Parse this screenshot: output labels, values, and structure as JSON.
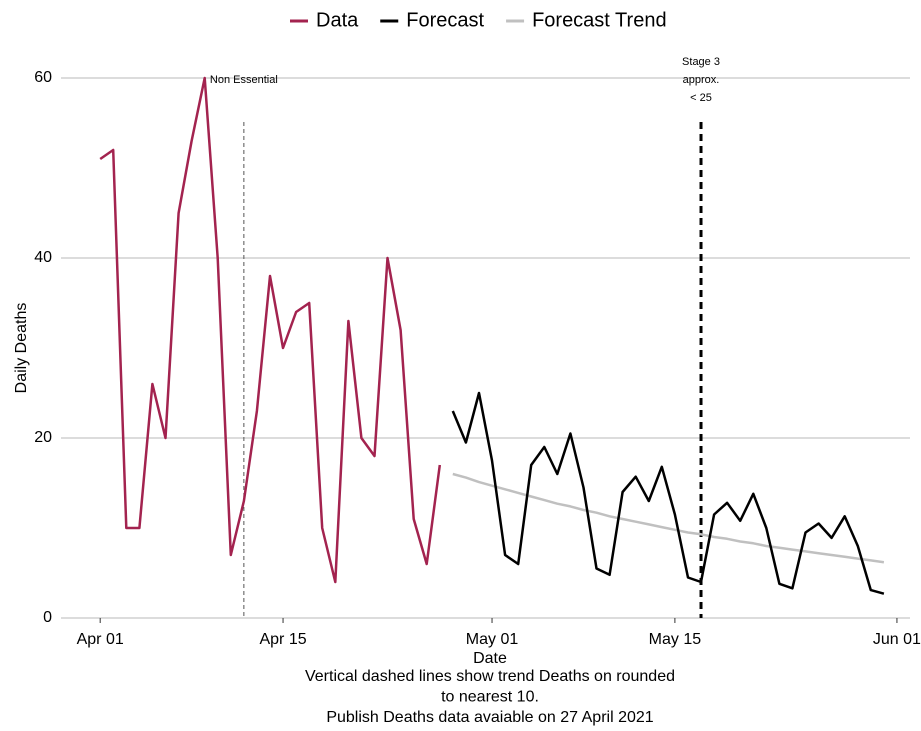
{
  "chart_data": {
    "type": "line",
    "x_label": "Date",
    "y_label": "Daily Deaths",
    "notes": [
      "Vertical dashed lines show trend Deaths on rounded",
      "to nearest 10.",
      "Publish Deaths data avaiable on 27 April 2021"
    ],
    "x": [
      "Apr 01",
      "Apr 02",
      "Apr 03",
      "Apr 04",
      "Apr 05",
      "Apr 06",
      "Apr 07",
      "Apr 08",
      "Apr 09",
      "Apr 10",
      "Apr 11",
      "Apr 12",
      "Apr 13",
      "Apr 14",
      "Apr 15",
      "Apr 16",
      "Apr 17",
      "Apr 18",
      "Apr 19",
      "Apr 20",
      "Apr 21",
      "Apr 22",
      "Apr 23",
      "Apr 24",
      "Apr 25",
      "Apr 26",
      "Apr 27",
      "Apr 28",
      "Apr 29",
      "Apr 30",
      "May 01",
      "May 02",
      "May 03",
      "May 04",
      "May 05",
      "May 06",
      "May 07",
      "May 08",
      "May 09",
      "May 10",
      "May 11",
      "May 12",
      "May 13",
      "May 14",
      "May 15",
      "May 16",
      "May 17",
      "May 18",
      "May 19",
      "May 20",
      "May 21",
      "May 22",
      "May 23",
      "May 24",
      "May 25",
      "May 26",
      "May 27",
      "May 28",
      "May 29",
      "May 30",
      "May 31"
    ],
    "series": [
      {
        "name": "Data",
        "color": "#a3234f",
        "values": [
          51,
          52,
          10,
          10,
          26,
          20,
          45,
          53,
          60,
          40,
          7,
          13,
          23,
          38,
          30,
          34,
          35,
          10,
          4,
          33,
          20,
          18,
          40,
          32,
          11,
          6,
          17,
          null,
          null,
          null,
          null,
          null,
          null,
          null,
          null,
          null,
          null,
          null,
          null,
          null,
          null,
          null,
          null,
          null,
          null,
          null,
          null,
          null,
          null,
          null,
          null,
          null,
          null,
          null,
          null,
          null,
          null,
          null,
          null,
          null,
          null
        ]
      },
      {
        "name": "Forecast",
        "color": "#000000",
        "values": [
          null,
          null,
          null,
          null,
          null,
          null,
          null,
          null,
          null,
          null,
          null,
          null,
          null,
          null,
          null,
          null,
          null,
          null,
          null,
          null,
          null,
          null,
          null,
          null,
          null,
          null,
          null,
          23,
          19.5,
          25,
          17.5,
          7,
          6,
          17,
          19,
          16,
          20.5,
          14.5,
          5.5,
          4.8,
          14,
          15.7,
          13,
          16.8,
          11.5,
          4.5,
          4,
          11.5,
          12.8,
          10.8,
          13.8,
          10,
          3.8,
          3.3,
          9.5,
          10.5,
          8.9,
          11.3,
          8,
          3.1,
          2.7
        ]
      },
      {
        "name": "Forecast Trend",
        "color": "#c0c0c0",
        "values": [
          null,
          null,
          null,
          null,
          null,
          null,
          null,
          null,
          null,
          null,
          null,
          null,
          null,
          null,
          null,
          null,
          null,
          null,
          null,
          null,
          null,
          null,
          null,
          null,
          null,
          null,
          null,
          16,
          15.6,
          15.1,
          14.7,
          14.3,
          13.9,
          13.5,
          13.1,
          12.7,
          12.4,
          12,
          11.7,
          11.3,
          11,
          10.7,
          10.4,
          10.1,
          9.8,
          9.5,
          9.3,
          9,
          8.8,
          8.5,
          8.3,
          8,
          7.8,
          7.6,
          7.4,
          7.2,
          7,
          6.8,
          6.6,
          6.4,
          6.2
        ]
      }
    ],
    "annotations": [
      {
        "x": "Apr 12",
        "label": [
          "Non Essential"
        ],
        "color": "#555555"
      },
      {
        "x": "May 17",
        "label": [
          "Stage 3",
          "approx.",
          "< 25"
        ],
        "color": "#000000"
      }
    ],
    "xlim": [
      "Mar 29",
      "Jun 02"
    ],
    "xticks": [
      "Apr 01",
      "Apr 15",
      "May 01",
      "May 15",
      "Jun 01"
    ],
    "ylim": [
      0,
      60
    ],
    "yticks": [
      0,
      20,
      40,
      60
    ],
    "grid": true
  }
}
